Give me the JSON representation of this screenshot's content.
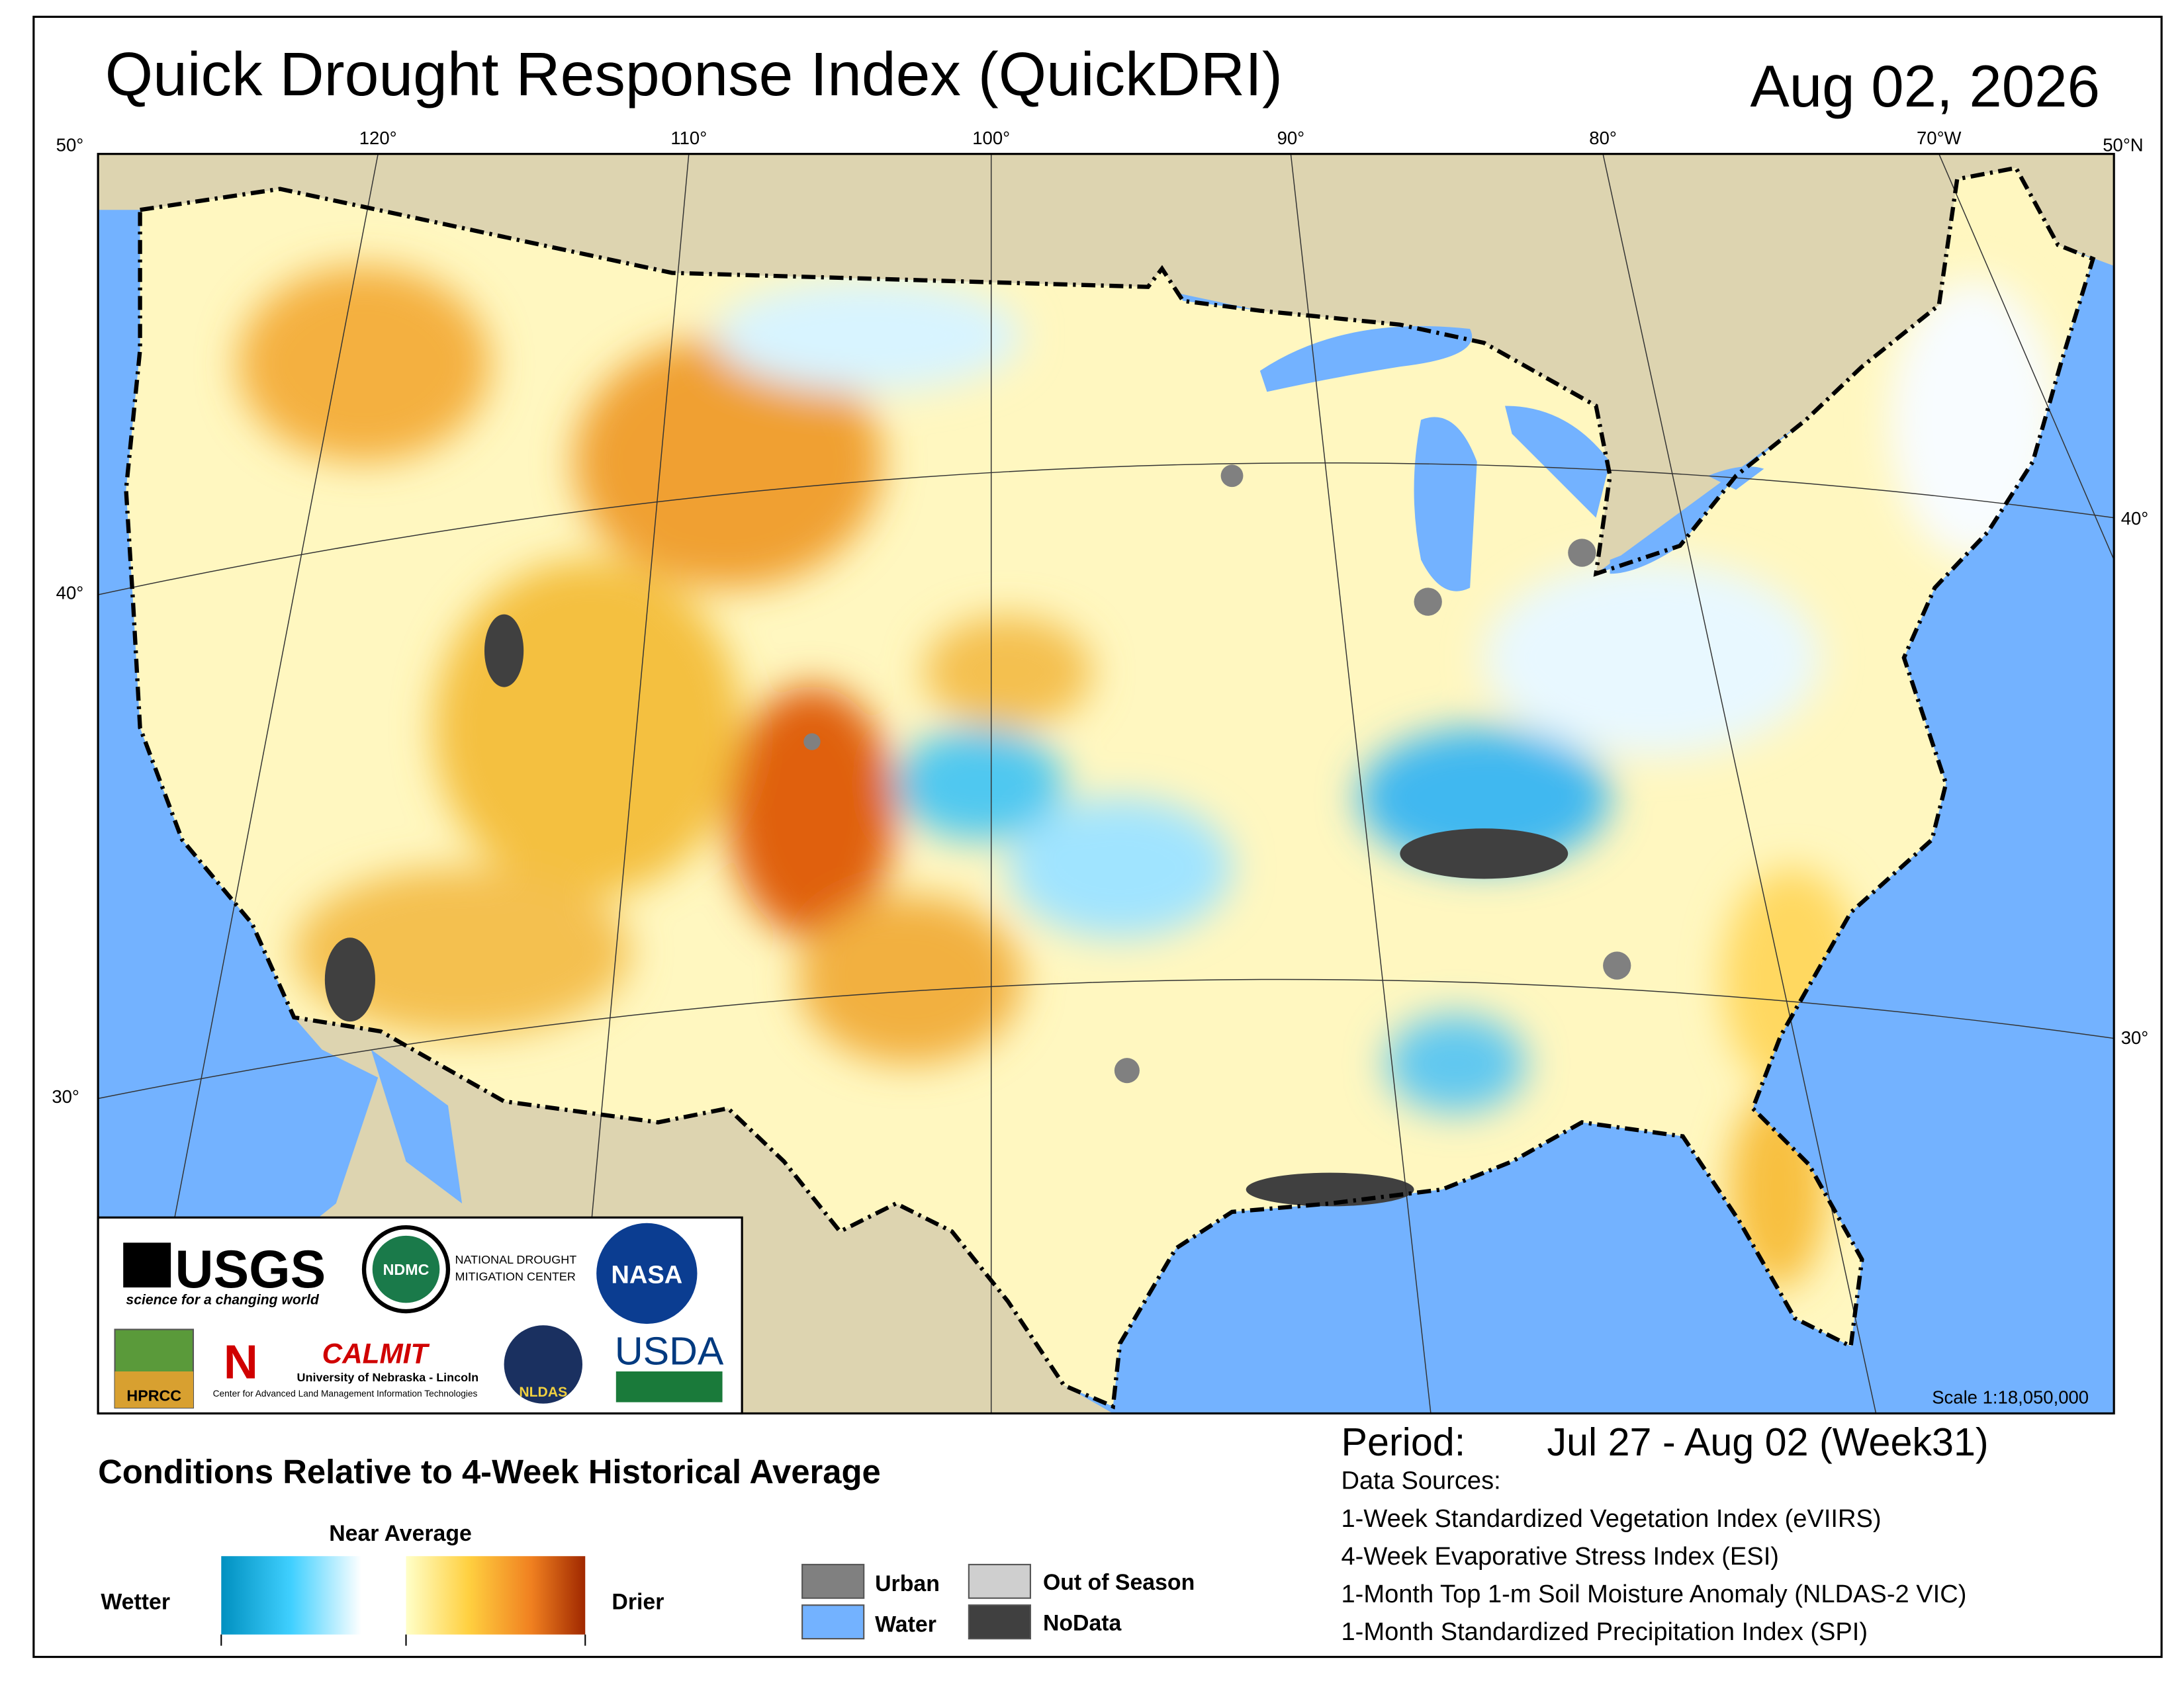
{
  "header": {
    "title": "Quick Drought Response Index (QuickDRI)",
    "date": "Aug 02, 2026"
  },
  "map": {
    "graticule": {
      "top": [
        "50°",
        "120°",
        "110°",
        "100°",
        "90°",
        "80°",
        "70°W",
        "50°N"
      ],
      "left": [
        "40°",
        "30°"
      ],
      "right": [
        "40°",
        "30°"
      ]
    },
    "scale": "Scale 1:18,050,000",
    "logos": {
      "usgs": "USGS",
      "usgs_tagline": "science for a changing world",
      "ndmc": "NDMC",
      "ndmc_name_1": "NATIONAL DROUGHT",
      "ndmc_name_2": "MITIGATION CENTER",
      "nasa": "NASA",
      "hprcc": "HPRCC",
      "nebraska": "N",
      "calmit": "CALMIT",
      "calmit_univ": "University of Nebraska - Lincoln",
      "calmit_name": "Center for Advanced Land Management Information Technologies",
      "nldas": "NLDAS",
      "usda": "USDA"
    }
  },
  "legend": {
    "title": "Conditions Relative to 4-Week Historical Average",
    "near_average": "Near Average",
    "wetter": "Wetter",
    "drier": "Drier",
    "classes": [
      "Urban",
      "Water",
      "Out of Season",
      "NoData"
    ]
  },
  "period": {
    "label": "Period:",
    "value": "Jul 27 - Aug 02 (Week31)"
  },
  "data_sources": {
    "title": "Data Sources:",
    "items": [
      "1-Week Standardized Vegetation Index (eVIIRS)",
      "4-Week Evaporative Stress Index (ESI)",
      "1-Month Top 1-m Soil Moisture Anomaly (NLDAS-2 VIC)",
      "1-Month Standardized Precipitation Index (SPI)"
    ]
  }
}
